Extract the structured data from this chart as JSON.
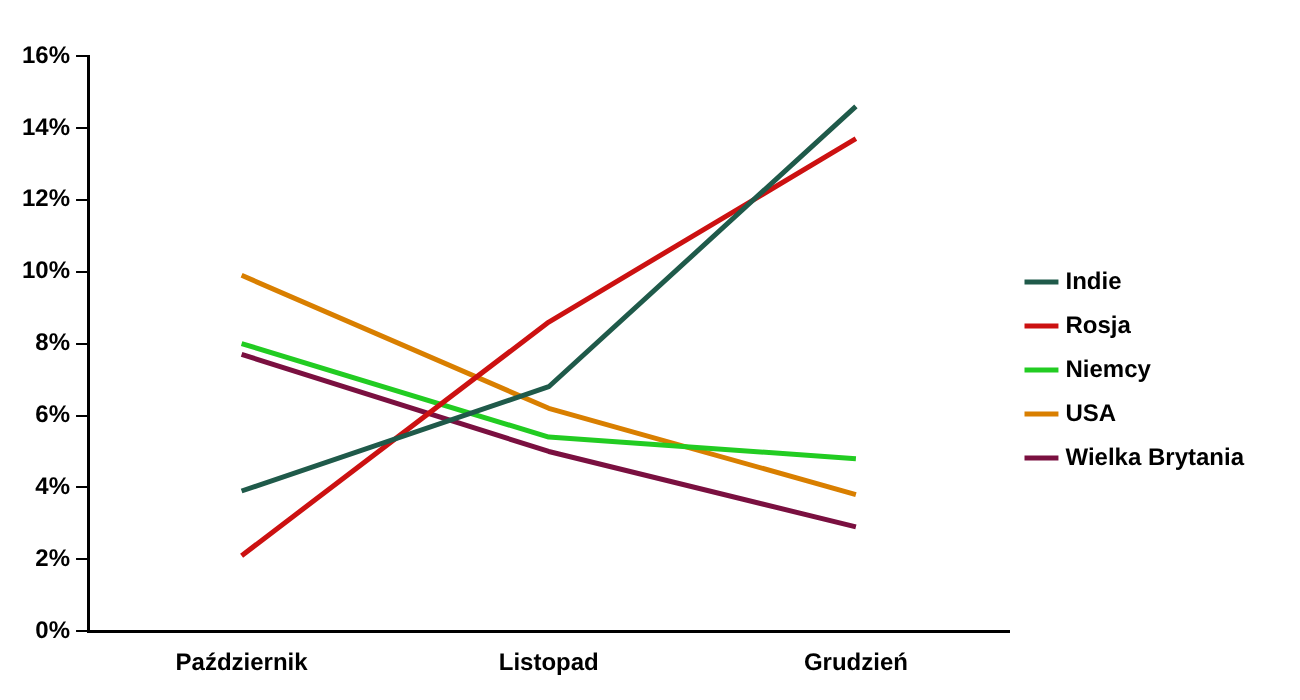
{
  "chart_data": {
    "type": "line",
    "categories": [
      "Październik",
      "Listopad",
      "Grudzień"
    ],
    "series": [
      {
        "name": "Indie",
        "color": "#1f5a4a",
        "values": [
          3.9,
          6.8,
          14.6
        ]
      },
      {
        "name": "Rosja",
        "color": "#cc1111",
        "values": [
          2.1,
          8.6,
          13.7
        ]
      },
      {
        "name": "Niemcy",
        "color": "#22cc22",
        "values": [
          8.0,
          5.4,
          4.8
        ]
      },
      {
        "name": "USA",
        "color": "#d97f00",
        "values": [
          9.9,
          6.2,
          3.8
        ]
      },
      {
        "name": "Wielka Brytania",
        "color": "#7a1040",
        "values": [
          7.7,
          5.0,
          2.9
        ]
      }
    ],
    "ylim": [
      0,
      16
    ],
    "yticks": [
      {
        "value": 0,
        "label": "0%"
      },
      {
        "value": 2,
        "label": "2%"
      },
      {
        "value": 4,
        "label": "4%"
      },
      {
        "value": 6,
        "label": "6%"
      },
      {
        "value": 8,
        "label": "8%"
      },
      {
        "value": 10,
        "label": "10%"
      },
      {
        "value": 12,
        "label": "12%"
      },
      {
        "value": 14,
        "label": "14%"
      },
      {
        "value": 16,
        "label": "16%"
      }
    ],
    "grid": false,
    "legend": "right",
    "marker": "none",
    "line_style": "solid"
  }
}
